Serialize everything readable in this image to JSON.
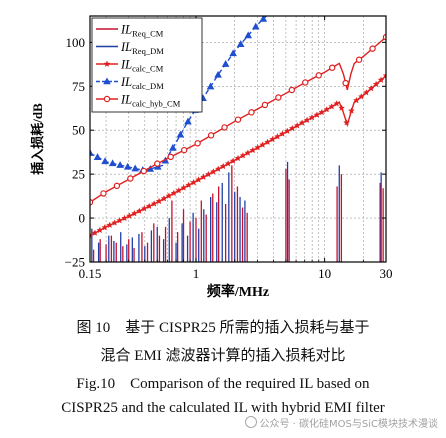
{
  "chart_data": {
    "type": "line",
    "title": "",
    "xlabel": "频率/MHz",
    "ylabel": "插入损耗/dB",
    "x_scale": "log",
    "xlim": [
      0.15,
      30
    ],
    "ylim": [
      -25,
      115
    ],
    "xticks": [
      {
        "value": 0.15,
        "label": "0.15"
      },
      {
        "value": 1,
        "label": "1"
      },
      {
        "value": 10,
        "label": "10"
      },
      {
        "value": 30,
        "label": "30"
      }
    ],
    "yticks": [
      {
        "value": -25,
        "label": "−25"
      },
      {
        "value": 0,
        "label": "0"
      },
      {
        "value": 25,
        "label": "25"
      },
      {
        "value": 50,
        "label": "50"
      },
      {
        "value": 75,
        "label": "75"
      },
      {
        "value": 100,
        "label": "100"
      }
    ],
    "grid": true,
    "legend_position": "top-left",
    "legend": [
      {
        "label_main": "IL",
        "label_sub": "Req_CM",
        "style": "solid",
        "marker": "none",
        "color": "#c8102e"
      },
      {
        "label_main": "IL",
        "label_sub": "Req_DM",
        "style": "solid",
        "marker": "none",
        "color": "#1f3fa6"
      },
      {
        "label_main": "IL",
        "label_sub": "calc_CM",
        "style": "solid",
        "marker": "star",
        "color": "#e02020"
      },
      {
        "label_main": "IL",
        "label_sub": "calc_DM",
        "style": "dashed",
        "marker": "triangle",
        "color": "#1f4fd0"
      },
      {
        "label_main": "IL",
        "label_sub": "calc_hyb_CM",
        "style": "solid",
        "marker": "circle",
        "color": "#e02020"
      }
    ],
    "series": [
      {
        "name": "IL_calc_CM",
        "color": "#e02020",
        "marker": "star",
        "dashed": false,
        "x": [
          0.15,
          0.2,
          0.3,
          0.5,
          1,
          2,
          3,
          5,
          7,
          10,
          13,
          14,
          15,
          16,
          17,
          20,
          25,
          30
        ],
        "y": [
          -10,
          -5,
          1,
          9,
          21,
          33,
          40,
          49,
          55,
          61,
          66,
          60,
          53,
          60,
          66,
          70,
          76,
          81
        ]
      },
      {
        "name": "IL_calc_DM",
        "color": "#1f4fd0",
        "marker": "triangle",
        "dashed": true,
        "x": [
          0.15,
          0.2,
          0.3,
          0.4,
          0.55,
          0.7,
          0.85,
          1,
          1.5,
          2,
          3,
          5
        ],
        "y": [
          37,
          32,
          29,
          27,
          30,
          43,
          54,
          62,
          82,
          95,
          110,
          126
        ]
      },
      {
        "name": "IL_calc_hyb_CM",
        "color": "#e02020",
        "marker": "circle",
        "dashed": false,
        "x": [
          0.15,
          0.2,
          0.3,
          0.5,
          1,
          2,
          3,
          5,
          7,
          10,
          13,
          14,
          15,
          16,
          17,
          20,
          25,
          30
        ],
        "y": [
          9,
          15,
          22,
          31,
          42,
          55,
          62,
          71,
          77,
          83,
          88,
          82,
          73,
          82,
          88,
          92,
          98,
          103
        ]
      }
    ],
    "required_spikes": {
      "IL_Req_CM": {
        "color": "#c8102e",
        "x": [
          0.16,
          0.18,
          0.2,
          0.22,
          0.24,
          0.27,
          0.3,
          0.33,
          0.38,
          0.42,
          0.47,
          0.52,
          0.58,
          0.65,
          0.72,
          0.8,
          0.9,
          1.0,
          1.1,
          1.2,
          1.35,
          1.5,
          1.7,
          1.9,
          2.1,
          2.3,
          2.5,
          5.0,
          5.3,
          12.5,
          13.5,
          27,
          28.5
        ],
        "y": [
          -18,
          -12,
          -15,
          -10,
          -14,
          -16,
          -12,
          -17,
          -8,
          -14,
          -3,
          -10,
          -5,
          10,
          -8,
          5,
          -2,
          0,
          10,
          2,
          14,
          18,
          8,
          30,
          18,
          6,
          3,
          28,
          22,
          18,
          25,
          20,
          17
        ]
      },
      "IL_Req_DM": {
        "color": "#1f3fa6",
        "x": [
          0.155,
          0.175,
          0.21,
          0.23,
          0.26,
          0.29,
          0.32,
          0.36,
          0.4,
          0.45,
          0.5,
          0.56,
          0.62,
          0.7,
          0.78,
          0.86,
          0.95,
          1.05,
          1.15,
          1.3,
          1.45,
          1.6,
          1.8,
          2.0,
          2.2,
          2.4,
          5.15,
          13.0,
          27.5
        ],
        "y": [
          -6,
          -14,
          -10,
          -13,
          -8,
          -15,
          -11,
          -9,
          -16,
          -7,
          -5,
          -12,
          0,
          -14,
          -3,
          -10,
          3,
          -6,
          5,
          12,
          9,
          20,
          26,
          15,
          12,
          10,
          32,
          30,
          26
        ]
      }
    },
    "annotations": []
  },
  "caption": {
    "zh_line1": "图 10　基于 CISPR25 所需的插入损耗与基于",
    "zh_line2": "混合 EMI 滤波器计算的插入损耗对比",
    "en_line1": "Fig.10　Comparison of the required IL based on",
    "en_line2": "CISPR25 and the calculated IL with hybrid EMI filter"
  },
  "watermark": {
    "text": "公众号 · 碳化硅MOS与SiC模块技术漫谈"
  }
}
